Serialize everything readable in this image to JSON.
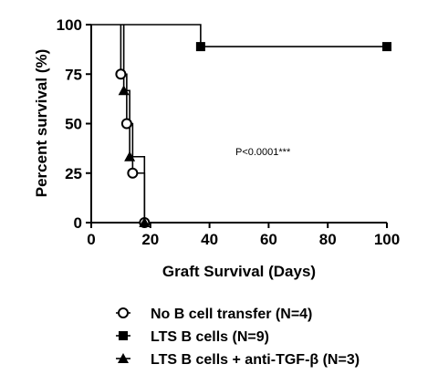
{
  "chart_data": {
    "type": "line",
    "subtype": "kaplan-meier-step",
    "xlabel": "Graft Survival (Days)",
    "ylabel": "Percent survival (%)",
    "xlim": [
      0,
      100
    ],
    "ylim": [
      0,
      100
    ],
    "x_ticks": [
      0,
      20,
      40,
      60,
      80,
      100
    ],
    "y_ticks": [
      0,
      25,
      50,
      75,
      100
    ],
    "grid": false,
    "legend_position": "bottom",
    "annotation": "P<0.0001***",
    "series": [
      {
        "name": "No B cell transfer (N=4)",
        "marker": "open-circle",
        "points": [
          [
            10,
            75
          ],
          [
            12,
            50
          ],
          [
            14,
            25
          ],
          [
            18,
            0
          ]
        ],
        "step": [
          [
            10,
            100
          ],
          [
            10,
            75
          ],
          [
            12,
            75
          ],
          [
            12,
            50
          ],
          [
            14,
            50
          ],
          [
            14,
            25
          ],
          [
            18,
            25
          ],
          [
            18,
            0
          ]
        ]
      },
      {
        "name": "LTS B cells (N=9)",
        "marker": "filled-square",
        "points": [
          [
            37,
            88.9
          ],
          [
            100,
            88.9
          ]
        ],
        "step": [
          [
            0,
            100
          ],
          [
            37,
            100
          ],
          [
            37,
            88.9
          ],
          [
            100,
            88.9
          ]
        ]
      },
      {
        "name": "LTS B cells + anti-TGF-β (N=3)",
        "marker": "filled-triangle",
        "points": [
          [
            11,
            66.7
          ],
          [
            13,
            33.3
          ],
          [
            18,
            0
          ]
        ],
        "step": [
          [
            11,
            100
          ],
          [
            11,
            66.7
          ],
          [
            13,
            66.7
          ],
          [
            13,
            33.3
          ],
          [
            18,
            33.3
          ],
          [
            18,
            0
          ]
        ]
      }
    ]
  }
}
